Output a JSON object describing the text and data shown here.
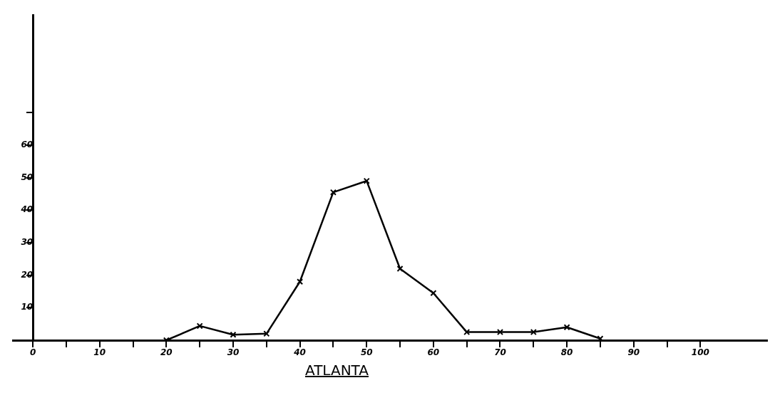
{
  "chart_data": {
    "type": "line",
    "title": "ATLANTA",
    "x": [
      20,
      25,
      30,
      35,
      40,
      45,
      50,
      55,
      60,
      65,
      70,
      75,
      80,
      85
    ],
    "series": [
      {
        "color": "#000000",
        "values": [
          0,
          4.4,
          1.7,
          2,
          18,
          45.5,
          49,
          22,
          14.5,
          2.5,
          2.5,
          2.5,
          4,
          0.5
        ]
      }
    ],
    "xlim": [
      -3,
      110
    ],
    "ylim": [
      0,
      100
    ],
    "xticks": [
      0,
      {
        "value": 5,
        "label": null
      },
      10,
      {
        "value": 15,
        "label": null
      },
      20,
      {
        "value": 25,
        "label": null
      },
      30,
      {
        "value": 35,
        "label": null
      },
      40,
      {
        "value": 45,
        "label": null
      },
      50,
      {
        "value": 55,
        "label": null
      },
      60,
      {
        "value": 65,
        "label": null
      },
      70,
      {
        "value": 75,
        "label": null
      },
      80,
      {
        "value": 85,
        "label": null
      },
      90,
      {
        "value": 95,
        "label": null
      },
      100
    ],
    "yticks": [
      10,
      20,
      30,
      40,
      50,
      60,
      {
        "value": 70,
        "label": null
      }
    ],
    "grid": false,
    "legend": false,
    "marker": "cross",
    "line_style": "solid"
  }
}
